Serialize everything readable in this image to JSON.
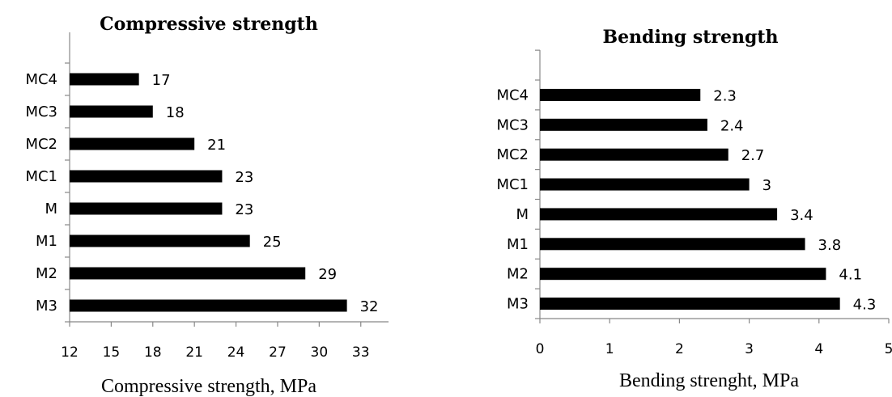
{
  "chart_data": [
    {
      "type": "bar",
      "orientation": "horizontal",
      "title": "Compressive strength",
      "xlabel": "Compressive strength, MPa",
      "ylabel": "",
      "categories": [
        "M3",
        "M2",
        "M1",
        "M",
        "MC1",
        "MC2",
        "MC3",
        "MC4"
      ],
      "values": [
        32,
        29,
        25,
        23,
        23,
        21,
        18,
        17
      ],
      "xlim": [
        12,
        35
      ],
      "xticks": [
        12,
        15,
        18,
        21,
        24,
        27,
        30,
        33
      ],
      "bar_color": "#000000",
      "grid": false,
      "legend": "none"
    },
    {
      "type": "bar",
      "orientation": "horizontal",
      "title": "Bending strength",
      "xlabel": "Bending strenght, MPa",
      "ylabel": "",
      "categories": [
        "M3",
        "M2",
        "M1",
        "M",
        "MC1",
        "MC2",
        "MC3",
        "MC4"
      ],
      "values": [
        4.3,
        4.1,
        3.8,
        3.4,
        3,
        2.7,
        2.4,
        2.3
      ],
      "xlim": [
        0,
        5
      ],
      "xticks": [
        0,
        1,
        2,
        3,
        4,
        5
      ],
      "bar_color": "#000000",
      "grid": false,
      "legend": "none"
    }
  ]
}
